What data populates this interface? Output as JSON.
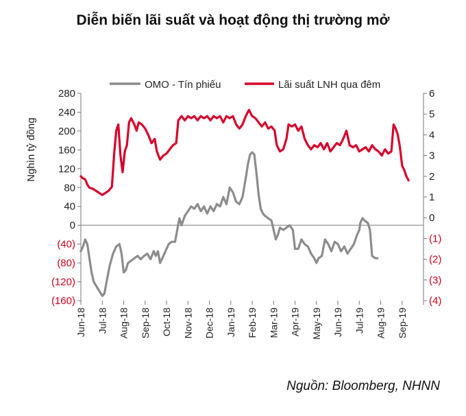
{
  "title": "Diễn biến lãi suất và hoạt động thị trường mở",
  "source": "Nguồn: Bloomberg, NHNN",
  "colors": {
    "omo": "#8c8c8c",
    "rate": "#d7002a",
    "negative_tick": "#d0021b"
  },
  "chart_data": {
    "type": "line",
    "title": "Diễn biến lãi suất và hoạt động thị trường mở",
    "ylabel": "Nghìn tỷ đồng",
    "ylabel_right": "",
    "xlabel": "",
    "ylim": [
      -160,
      280
    ],
    "ylim_right": [
      -4,
      6
    ],
    "y_ticks": [
      280,
      240,
      200,
      160,
      120,
      80,
      40,
      0,
      -40,
      -80,
      -120,
      -160
    ],
    "y_tick_labels": [
      "280",
      "240",
      "200",
      "160",
      "120",
      "80",
      "40",
      "0",
      "(40)",
      "(80)",
      "(120)",
      "(160)"
    ],
    "y_right_ticks": [
      6,
      5,
      4,
      3,
      2,
      1,
      0,
      -1,
      -2,
      -3,
      -4
    ],
    "y_right_tick_labels": [
      "6",
      "5",
      "4",
      "3",
      "2",
      "1",
      "0",
      "(1)",
      "(2)",
      "(3)",
      "(4)"
    ],
    "x_tick_labels": [
      "Jun-18",
      "Jul-18",
      "Aug-18",
      "Sep-18",
      "Oct-18",
      "Nov-18",
      "Dec-18",
      "Jan-19",
      "Feb-19",
      "Mar-19",
      "Apr-19",
      "May-19",
      "Jun-19",
      "Jul-19",
      "Aug-19",
      "Sep-19"
    ],
    "legend_position": "top",
    "grid": false,
    "series": [
      {
        "name": "OMO - Tín phiếu",
        "axis": "left",
        "values": [
          [
            0,
            -55
          ],
          [
            0.1,
            -45
          ],
          [
            0.2,
            -30
          ],
          [
            0.3,
            -40
          ],
          [
            0.4,
            -70
          ],
          [
            0.5,
            -100
          ],
          [
            0.6,
            -120
          ],
          [
            0.8,
            -135
          ],
          [
            1.0,
            -150
          ],
          [
            1.1,
            -145
          ],
          [
            1.2,
            -120
          ],
          [
            1.35,
            -85
          ],
          [
            1.5,
            -60
          ],
          [
            1.65,
            -45
          ],
          [
            1.8,
            -40
          ],
          [
            1.9,
            -60
          ],
          [
            2.0,
            -100
          ],
          [
            2.1,
            -95
          ],
          [
            2.2,
            -80
          ],
          [
            2.35,
            -75
          ],
          [
            2.5,
            -70
          ],
          [
            2.65,
            -65
          ],
          [
            2.8,
            -72
          ],
          [
            2.95,
            -65
          ],
          [
            3.1,
            -60
          ],
          [
            3.25,
            -72
          ],
          [
            3.4,
            -55
          ],
          [
            3.5,
            -65
          ],
          [
            3.6,
            -55
          ],
          [
            3.7,
            -80
          ],
          [
            3.8,
            -70
          ],
          [
            3.9,
            -60
          ],
          [
            4.0,
            -50
          ],
          [
            4.1,
            -40
          ],
          [
            4.25,
            -35
          ],
          [
            4.4,
            -35
          ],
          [
            4.5,
            -10
          ],
          [
            4.6,
            15
          ],
          [
            4.7,
            0
          ],
          [
            4.85,
            20
          ],
          [
            5.0,
            30
          ],
          [
            5.15,
            40
          ],
          [
            5.3,
            35
          ],
          [
            5.45,
            45
          ],
          [
            5.6,
            30
          ],
          [
            5.75,
            40
          ],
          [
            5.9,
            25
          ],
          [
            6.05,
            40
          ],
          [
            6.2,
            30
          ],
          [
            6.35,
            45
          ],
          [
            6.5,
            40
          ],
          [
            6.65,
            60
          ],
          [
            6.8,
            45
          ],
          [
            6.95,
            80
          ],
          [
            7.1,
            70
          ],
          [
            7.25,
            50
          ],
          [
            7.4,
            45
          ],
          [
            7.55,
            60
          ],
          [
            7.7,
            100
          ],
          [
            7.8,
            130
          ],
          [
            7.9,
            150
          ],
          [
            8.0,
            155
          ],
          [
            8.1,
            150
          ],
          [
            8.2,
            110
          ],
          [
            8.3,
            65
          ],
          [
            8.4,
            35
          ],
          [
            8.5,
            25
          ],
          [
            8.6,
            20
          ],
          [
            8.75,
            15
          ],
          [
            8.9,
            10
          ],
          [
            9.0,
            -10
          ],
          [
            9.1,
            -30
          ],
          [
            9.2,
            -20
          ],
          [
            9.3,
            -5
          ],
          [
            9.45,
            -10
          ],
          [
            9.6,
            -5
          ],
          [
            9.75,
            0
          ],
          [
            9.9,
            -10
          ],
          [
            10.0,
            -50
          ],
          [
            10.15,
            -50
          ],
          [
            10.3,
            -30
          ],
          [
            10.45,
            -40
          ],
          [
            10.6,
            -45
          ],
          [
            10.75,
            -60
          ],
          [
            10.9,
            -70
          ],
          [
            11.0,
            -80
          ],
          [
            11.1,
            -70
          ],
          [
            11.25,
            -65
          ],
          [
            11.4,
            -30
          ],
          [
            11.55,
            -40
          ],
          [
            11.7,
            -55
          ],
          [
            11.85,
            -35
          ],
          [
            12.0,
            -40
          ],
          [
            12.15,
            -55
          ],
          [
            12.3,
            -45
          ],
          [
            12.45,
            -60
          ],
          [
            12.6,
            -50
          ],
          [
            12.75,
            -40
          ],
          [
            12.9,
            -20
          ],
          [
            13.0,
            -10
          ],
          [
            13.05,
            5
          ],
          [
            13.15,
            15
          ],
          [
            13.25,
            10
          ],
          [
            13.4,
            5
          ],
          [
            13.5,
            -10
          ],
          [
            13.6,
            -65
          ],
          [
            13.75,
            -70
          ],
          [
            13.85,
            -70
          ]
        ]
      },
      {
        "name": "Lãi suất LNH qua đêm",
        "axis": "right",
        "values": [
          [
            0,
            2.0
          ],
          [
            0.1,
            1.9
          ],
          [
            0.2,
            1.85
          ],
          [
            0.3,
            1.6
          ],
          [
            0.4,
            1.45
          ],
          [
            0.55,
            1.4
          ],
          [
            0.7,
            1.3
          ],
          [
            0.85,
            1.2
          ],
          [
            1.0,
            1.1
          ],
          [
            1.15,
            1.2
          ],
          [
            1.3,
            1.3
          ],
          [
            1.45,
            1.5
          ],
          [
            1.55,
            3.0
          ],
          [
            1.65,
            4.2
          ],
          [
            1.75,
            4.5
          ],
          [
            1.85,
            3.0
          ],
          [
            1.95,
            2.2
          ],
          [
            2.05,
            3.2
          ],
          [
            2.15,
            3.5
          ],
          [
            2.25,
            4.6
          ],
          [
            2.35,
            4.8
          ],
          [
            2.5,
            4.5
          ],
          [
            2.6,
            4.2
          ],
          [
            2.7,
            4.6
          ],
          [
            2.85,
            4.5
          ],
          [
            3.0,
            4.3
          ],
          [
            3.15,
            4.0
          ],
          [
            3.3,
            3.6
          ],
          [
            3.45,
            3.8
          ],
          [
            3.55,
            3.2
          ],
          [
            3.7,
            2.8
          ],
          [
            3.85,
            3.0
          ],
          [
            4.0,
            3.1
          ],
          [
            4.15,
            3.3
          ],
          [
            4.3,
            3.5
          ],
          [
            4.45,
            3.6
          ],
          [
            4.55,
            4.7
          ],
          [
            4.7,
            4.9
          ],
          [
            4.85,
            4.7
          ],
          [
            5.0,
            4.9
          ],
          [
            5.15,
            4.8
          ],
          [
            5.3,
            4.9
          ],
          [
            5.45,
            4.7
          ],
          [
            5.6,
            4.9
          ],
          [
            5.75,
            4.8
          ],
          [
            5.9,
            4.9
          ],
          [
            6.05,
            4.7
          ],
          [
            6.2,
            4.9
          ],
          [
            6.35,
            4.8
          ],
          [
            6.5,
            4.9
          ],
          [
            6.65,
            4.6
          ],
          [
            6.8,
            4.9
          ],
          [
            6.95,
            4.8
          ],
          [
            7.1,
            4.9
          ],
          [
            7.25,
            4.5
          ],
          [
            7.4,
            4.3
          ],
          [
            7.55,
            4.5
          ],
          [
            7.7,
            4.9
          ],
          [
            7.85,
            5.2
          ],
          [
            8.0,
            4.9
          ],
          [
            8.15,
            4.8
          ],
          [
            8.3,
            4.6
          ],
          [
            8.45,
            4.4
          ],
          [
            8.6,
            4.6
          ],
          [
            8.75,
            4.3
          ],
          [
            8.9,
            4.4
          ],
          [
            9.05,
            4.2
          ],
          [
            9.15,
            3.5
          ],
          [
            9.3,
            3.2
          ],
          [
            9.45,
            3.3
          ],
          [
            9.6,
            3.8
          ],
          [
            9.7,
            4.5
          ],
          [
            9.85,
            4.4
          ],
          [
            10.0,
            4.5
          ],
          [
            10.15,
            4.2
          ],
          [
            10.3,
            4.4
          ],
          [
            10.45,
            3.8
          ],
          [
            10.6,
            3.5
          ],
          [
            10.75,
            3.3
          ],
          [
            10.9,
            3.5
          ],
          [
            11.05,
            3.4
          ],
          [
            11.2,
            3.6
          ],
          [
            11.35,
            3.3
          ],
          [
            11.5,
            3.6
          ],
          [
            11.65,
            3.2
          ],
          [
            11.8,
            3.4
          ],
          [
            11.95,
            3.6
          ],
          [
            12.1,
            3.5
          ],
          [
            12.25,
            3.8
          ],
          [
            12.4,
            4.2
          ],
          [
            12.55,
            3.5
          ],
          [
            12.7,
            3.4
          ],
          [
            12.85,
            3.5
          ],
          [
            13.0,
            3.2
          ],
          [
            13.15,
            3.3
          ],
          [
            13.3,
            3.4
          ],
          [
            13.45,
            3.2
          ],
          [
            13.6,
            3.5
          ],
          [
            13.75,
            3.3
          ],
          [
            13.9,
            3.2
          ],
          [
            14.05,
            3.0
          ],
          [
            14.2,
            3.3
          ],
          [
            14.35,
            3.1
          ],
          [
            14.5,
            3.2
          ],
          [
            14.6,
            4.5
          ],
          [
            14.7,
            4.3
          ],
          [
            14.8,
            4.0
          ],
          [
            14.9,
            3.4
          ],
          [
            15.0,
            2.5
          ],
          [
            15.1,
            2.3
          ],
          [
            15.2,
            2.0
          ],
          [
            15.3,
            1.8
          ]
        ]
      }
    ]
  }
}
